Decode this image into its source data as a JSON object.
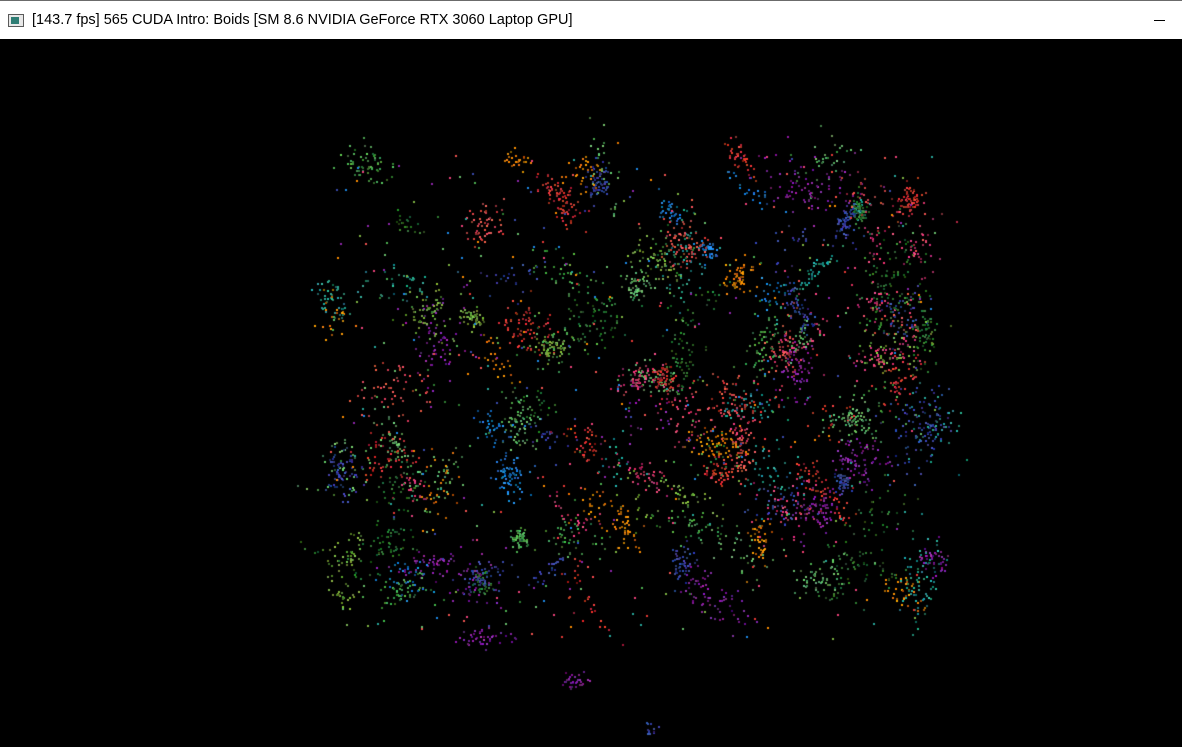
{
  "window": {
    "title": "[143.7 fps] 565 CUDA Intro: Boids [SM 8.6 NVIDIA GeForce RTX 3060 Laptop GPU]",
    "app_icon": "opengl-window-icon",
    "minimize_icon": "minimize-icon"
  },
  "simulation": {
    "background_color": "#000000",
    "particle_palette": [
      "#4caf50",
      "#2e7d32",
      "#66bb6a",
      "#e53935",
      "#ef5350",
      "#3949ab",
      "#1e88e5",
      "#8e24aa",
      "#ec407a",
      "#26a69a",
      "#fb8c00",
      "#7cb342"
    ]
  }
}
